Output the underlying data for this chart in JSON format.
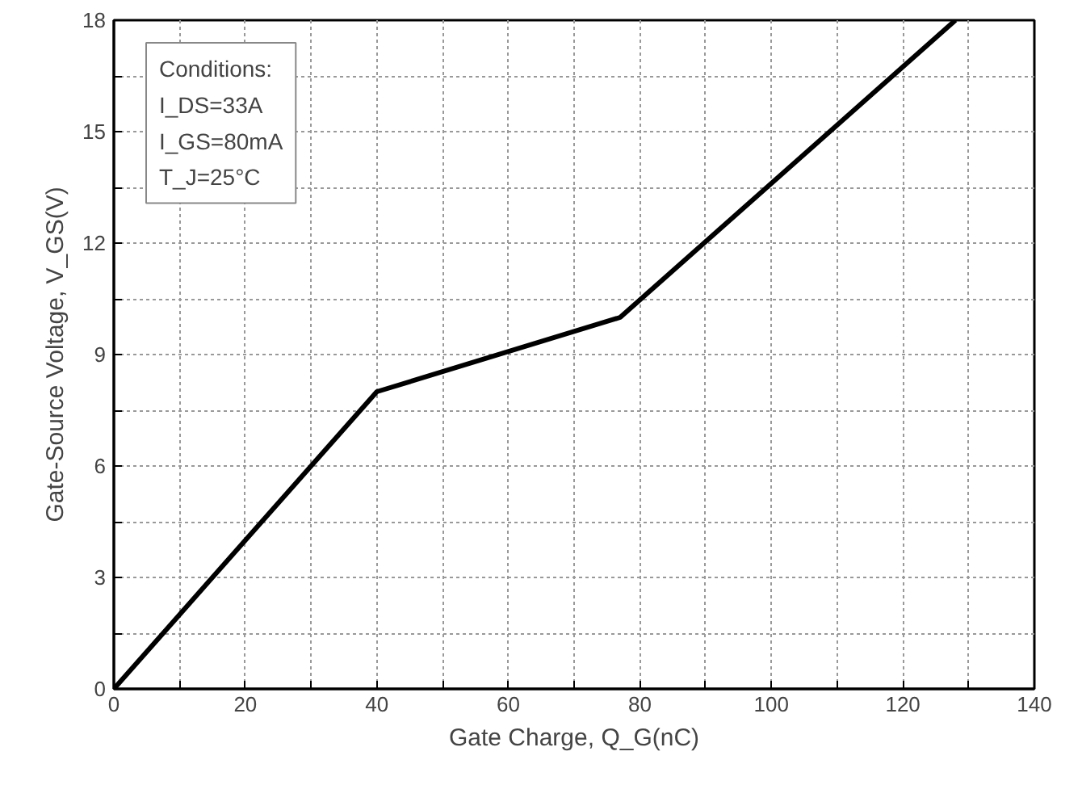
{
  "chart_data": {
    "type": "line",
    "xlabel": "Gate Charge, Q_G(nC)",
    "ylabel": "Gate-Source Voltage, V_GS(V)",
    "x": [
      0,
      40,
      77,
      128
    ],
    "series": [
      {
        "color": "#000000",
        "values": [
          0,
          8,
          10,
          18
        ]
      }
    ],
    "xlim": [
      0,
      140
    ],
    "ylim": [
      0,
      18
    ],
    "xticks": [
      0,
      {
        "value": 10,
        "label": null
      },
      20,
      {
        "value": 30,
        "label": null
      },
      40,
      {
        "value": 50,
        "label": null
      },
      60,
      {
        "value": 70,
        "label": null
      },
      80,
      {
        "value": 90,
        "label": null
      },
      100,
      {
        "value": 110,
        "label": null
      },
      120,
      {
        "value": 130,
        "label": null
      },
      140
    ],
    "yticks": [
      0,
      {
        "value": 1.5,
        "label": null
      },
      3,
      {
        "value": 4.5,
        "label": null
      },
      6,
      {
        "value": 7.5,
        "label": null
      },
      9,
      {
        "value": 10.5,
        "label": null
      },
      12,
      {
        "value": 13.5,
        "label": null
      },
      15,
      {
        "value": 16.5,
        "label": null
      },
      18
    ],
    "grid": true,
    "marker": "none",
    "line_style": "solid",
    "annotations": [
      "Conditions:",
      "I_DS=33A",
      "I_GS=80mA",
      "T_J=25°C"
    ]
  }
}
